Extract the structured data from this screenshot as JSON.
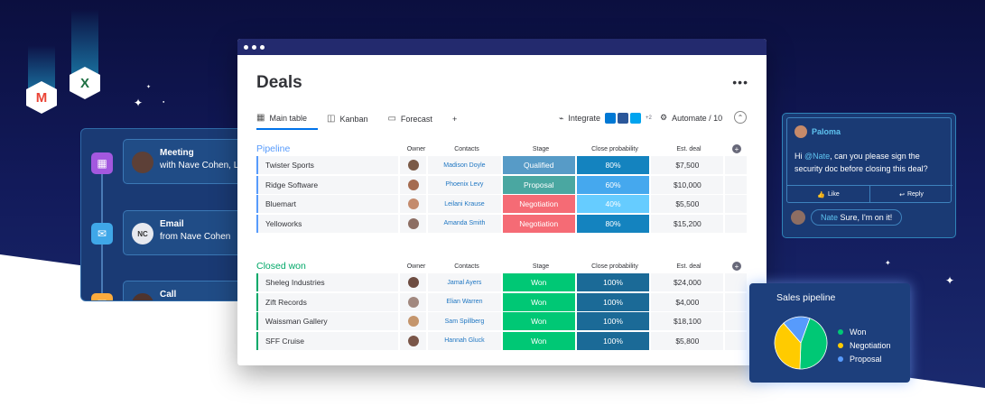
{
  "colors": {
    "qualified": "#579bc7",
    "proposal": "#4aa7a1",
    "negotiation": "#f56b75",
    "won": "#00c875",
    "prob80": "#1483bf",
    "prob60": "#45a8ee",
    "prob40": "#66ccff",
    "prob100": "#1b6a97",
    "pipeline": "#579bfc",
    "closed": "#00a868"
  },
  "apps": {
    "gmail": "M",
    "excel": "X"
  },
  "activity": [
    {
      "title": "Meeting",
      "sub": "with Nave Cohen, Lita",
      "icon": "calendar-icon",
      "icon_color": "#a358df",
      "avatar": ""
    },
    {
      "title": "Email",
      "sub": "from Nave Cohen",
      "icon": "mail-icon",
      "icon_color": "#3fa7e8",
      "avatar": "NC"
    },
    {
      "title": "Call",
      "sub": "",
      "icon": "phone-icon",
      "icon_color": "#fdab3d",
      "avatar": ""
    }
  ],
  "board": {
    "title": "Deals",
    "tabs": [
      {
        "label": "Main table",
        "icon": "table-icon"
      },
      {
        "label": "Kanban",
        "icon": "kanban-icon"
      },
      {
        "label": "Forecast",
        "icon": "chart-icon"
      }
    ],
    "add_tab": "+",
    "integrate_label": "Integrate",
    "integrate_count": "+2",
    "automate_label": "Automate / 10",
    "columns": [
      "Owner",
      "Contacts",
      "Stage",
      "Close probability",
      "Est. deal"
    ],
    "groups": [
      {
        "name": "Pipeline",
        "color_key": "pipeline",
        "rows": [
          {
            "name": "Twister Sports",
            "contact": "Madison Doyle",
            "stage": "Qualified",
            "stage_color": "#579bc7",
            "prob": "80%",
            "prob_color": "#1483bf",
            "deal": "$7,500",
            "owner_color": "#7b5a47"
          },
          {
            "name": "Ridge Software",
            "contact": "Phoenix Levy",
            "stage": "Proposal",
            "stage_color": "#4aa7a1",
            "prob": "60%",
            "prob_color": "#45a8ee",
            "deal": "$10,000",
            "owner_color": "#a56b50"
          },
          {
            "name": "Bluemart",
            "contact": "Leilani Krause",
            "stage": "Negotiation",
            "stage_color": "#f56b75",
            "prob": "40%",
            "prob_color": "#66ccff",
            "deal": "$5,500",
            "owner_color": "#c48b6d"
          },
          {
            "name": "Yelloworks",
            "contact": "Amanda Smith",
            "stage": "Negotiation",
            "stage_color": "#f56b75",
            "prob": "80%",
            "prob_color": "#1483bf",
            "deal": "$15,200",
            "owner_color": "#8d6e63"
          }
        ]
      },
      {
        "name": "Closed won",
        "color_key": "closed",
        "rows": [
          {
            "name": "Sheleg Industries",
            "contact": "Jamal Ayers",
            "stage": "Won",
            "stage_color": "#00c875",
            "prob": "100%",
            "prob_color": "#1b6a97",
            "deal": "$24,000",
            "owner_color": "#6d4c41"
          },
          {
            "name": "Zift Records",
            "contact": "Elian Warren",
            "stage": "Won",
            "stage_color": "#00c875",
            "prob": "100%",
            "prob_color": "#1b6a97",
            "deal": "$4,000",
            "owner_color": "#a1887f"
          },
          {
            "name": "Waissman Gallery",
            "contact": "Sam Spillberg",
            "stage": "Won",
            "stage_color": "#00c875",
            "prob": "100%",
            "prob_color": "#1b6a97",
            "deal": "$18,100",
            "owner_color": "#c4956c"
          },
          {
            "name": "SFF Cruise",
            "contact": "Hannah Gluck",
            "stage": "Won",
            "stage_color": "#00c875",
            "prob": "100%",
            "prob_color": "#1b6a97",
            "deal": "$5,800",
            "owner_color": "#795548"
          }
        ]
      }
    ]
  },
  "comment": {
    "user": "Paloma",
    "mention": "@Nate",
    "message": ", can you please sign the security doc before closing this deal?",
    "like": "Like",
    "reply": "Reply",
    "reply_mention": "Nate",
    "reply_text": "Sure, I'm on it!"
  },
  "chart_data": {
    "type": "pie",
    "title": "Sales pipeline",
    "categories": [
      "Won",
      "Negotiation",
      "Proposal"
    ],
    "values": [
      45,
      38,
      17
    ],
    "colors": [
      "#00c875",
      "#ffcb00",
      "#579bfc"
    ]
  }
}
